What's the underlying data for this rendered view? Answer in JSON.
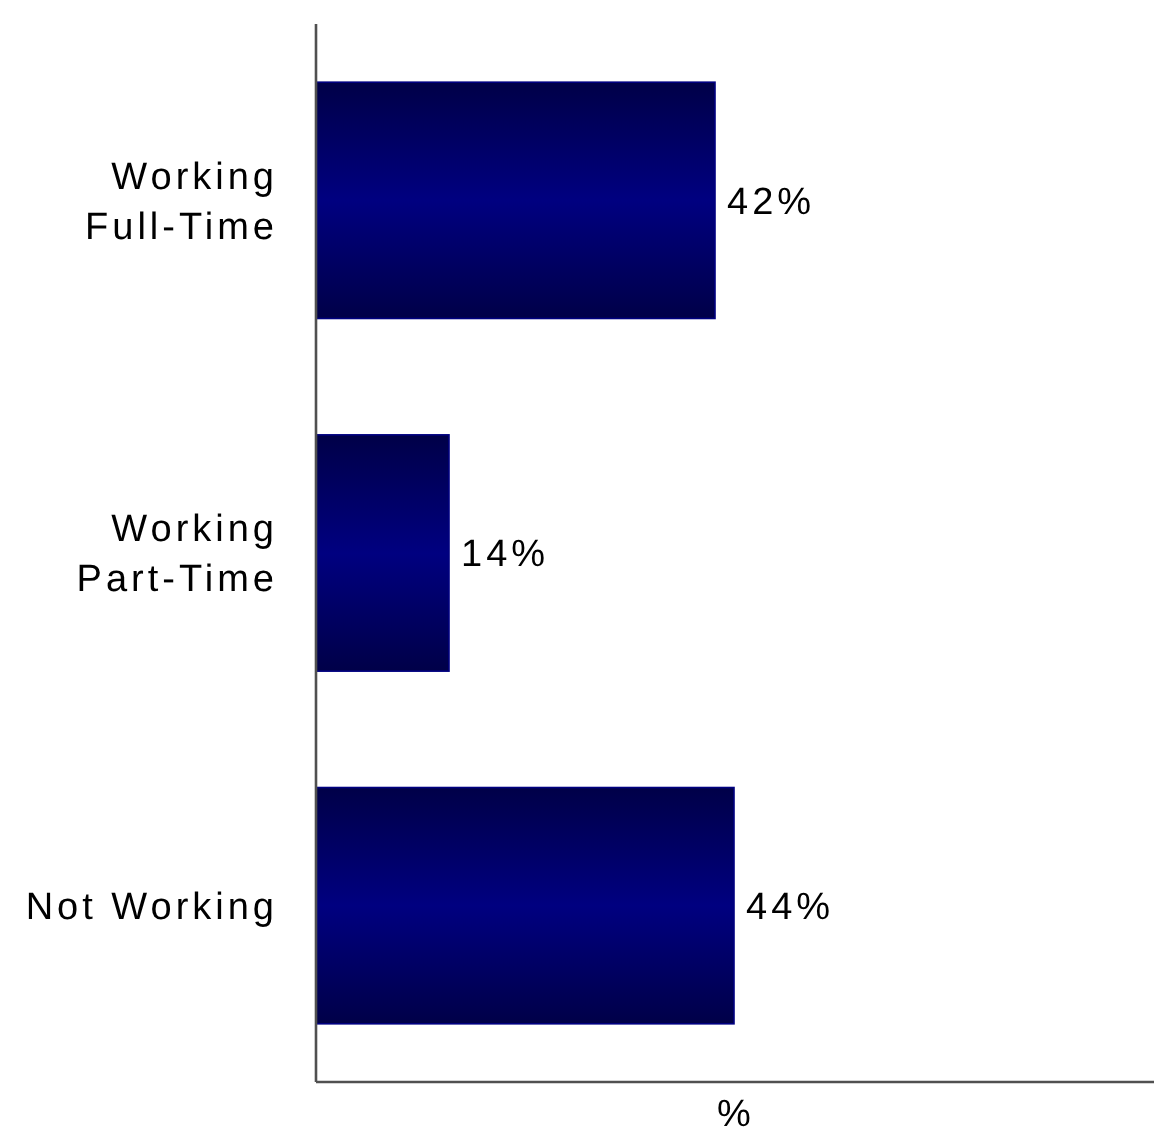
{
  "chart_data": {
    "type": "bar",
    "orientation": "horizontal",
    "categories": [
      "Working Full-Time",
      "Working Part-Time",
      "Not Working"
    ],
    "values": [
      42,
      14,
      44
    ],
    "value_labels": [
      "42%",
      "14%",
      "44%"
    ],
    "color": "#000080",
    "xlabel": "%",
    "xlim": [
      0,
      88
    ],
    "tick_labels": "y"
  }
}
